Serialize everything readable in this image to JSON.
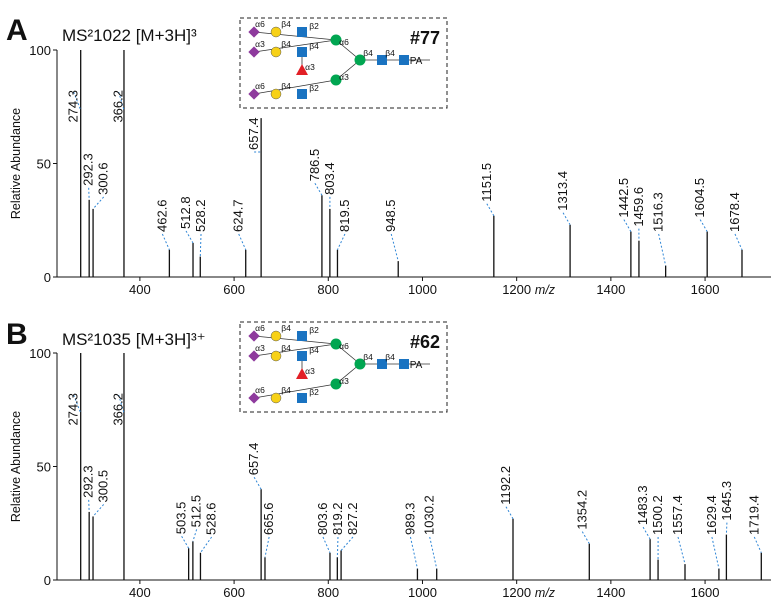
{
  "chart_data": [
    {
      "type": "spectrum",
      "panel": "A",
      "title": "MS²1022 [M+3H]³",
      "structure_id": "#77",
      "structure_labels": [
        "α6",
        "β4",
        "β2",
        "α3",
        "β4",
        "β4",
        "α3",
        "α6",
        "β4",
        "β2",
        "α6",
        "α3",
        "β4",
        "β4",
        "PA"
      ],
      "y_label": "Relative Abundance",
      "x_label": "m/z",
      "color": "#111111",
      "label_color": "#2f86d6",
      "xlim": [
        224,
        1740
      ],
      "xticks": [
        400,
        600,
        800,
        1000,
        1200,
        1400,
        1600
      ],
      "ylim": [
        0,
        100
      ],
      "yticks": [
        0,
        50,
        100
      ],
      "x": [
        274.3,
        292.3,
        300.6,
        366.2,
        462.6,
        512.8,
        528.2,
        624.7,
        657.4,
        786.5,
        803.4,
        819.5,
        948.5,
        1151.5,
        1313.4,
        1442.5,
        1459.6,
        1516.3,
        1604.5,
        1678.4
      ],
      "values": [
        100,
        34,
        30,
        100,
        12,
        15,
        9,
        12,
        70,
        36,
        30,
        12,
        7,
        27,
        23,
        20,
        16,
        5,
        20,
        12
      ]
    },
    {
      "type": "spectrum",
      "panel": "B",
      "title": "MS²1035 [M+3H]³⁺",
      "structure_id": "#62",
      "structure_labels": [
        "α6",
        "β4",
        "β2",
        "α3",
        "β4",
        "β4",
        "α3",
        "α6",
        "β4",
        "β2",
        "α6",
        "α3",
        "β4",
        "β4",
        "PA"
      ],
      "y_label": "Relative Abundance",
      "x_label": "m/z",
      "color": "#111111",
      "label_color": "#2f86d6",
      "xlim": [
        224,
        1740
      ],
      "xticks": [
        400,
        600,
        800,
        1000,
        1200,
        1400,
        1600
      ],
      "ylim": [
        0,
        100
      ],
      "yticks": [
        0,
        50,
        100
      ],
      "x": [
        274.3,
        292.3,
        300.5,
        366.2,
        503.5,
        512.5,
        528.6,
        657.4,
        665.6,
        803.6,
        819.2,
        827.2,
        989.3,
        1030.2,
        1192.2,
        1354.2,
        1483.3,
        1500.2,
        1557.4,
        1629.4,
        1645.3,
        1719.4
      ],
      "values": [
        100,
        30,
        28,
        100,
        14,
        17,
        12,
        40,
        10,
        12,
        10,
        13,
        5,
        5,
        27,
        16,
        18,
        9,
        7,
        5,
        20,
        12
      ]
    }
  ]
}
